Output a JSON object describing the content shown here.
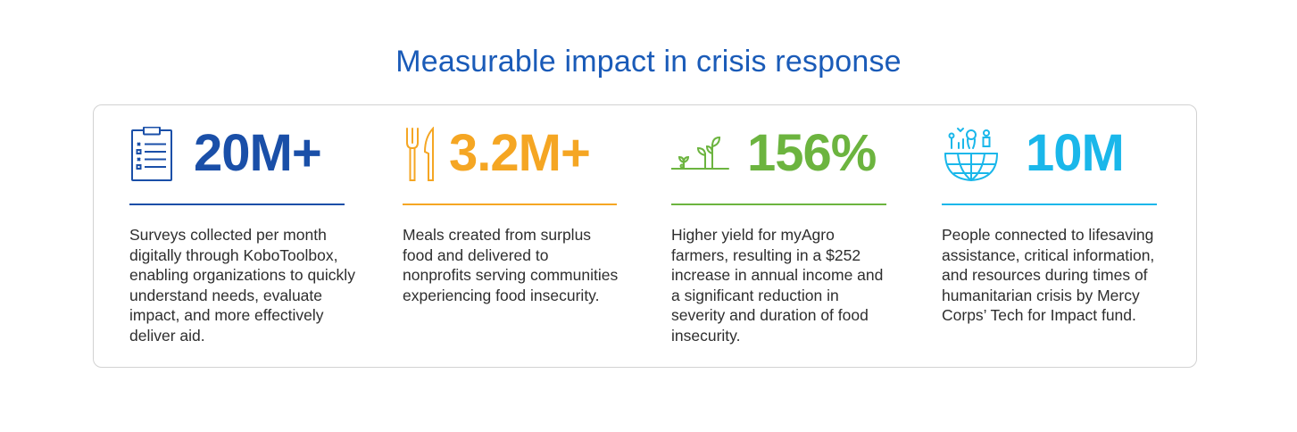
{
  "title": "Measurable impact in crisis response",
  "colors": {
    "title": "#1a5bb8",
    "border": "#d2d2d2",
    "stat_blue": "#1a4fa8",
    "stat_orange": "#f5a623",
    "stat_green": "#6cb43f",
    "stat_cyan": "#1ab7ea"
  },
  "stats": [
    {
      "icon": "clipboard-checklist-icon",
      "value": "20M+",
      "description": "Surveys collected per month digitally through KoboToolbox, enabling organizations to quickly understand needs, evaluate impact, and more effectively deliver aid."
    },
    {
      "icon": "fork-knife-icon",
      "value": "3.2M+",
      "description": "Meals created from surplus food and delivered to nonprofits serving communities experiencing food insecurity."
    },
    {
      "icon": "sprouting-plants-icon",
      "value": "156%",
      "description": "Higher yield for myAgro farmers, resulting in a $252 increase in annual income and a significant reduction in severity and duration of food insecurity."
    },
    {
      "icon": "globe-people-icon",
      "value": "10M",
      "description": "People connected to lifesaving assistance, critical information, and resources during times of humanitarian crisis by Mercy Corps’ Tech for Impact fund."
    }
  ]
}
